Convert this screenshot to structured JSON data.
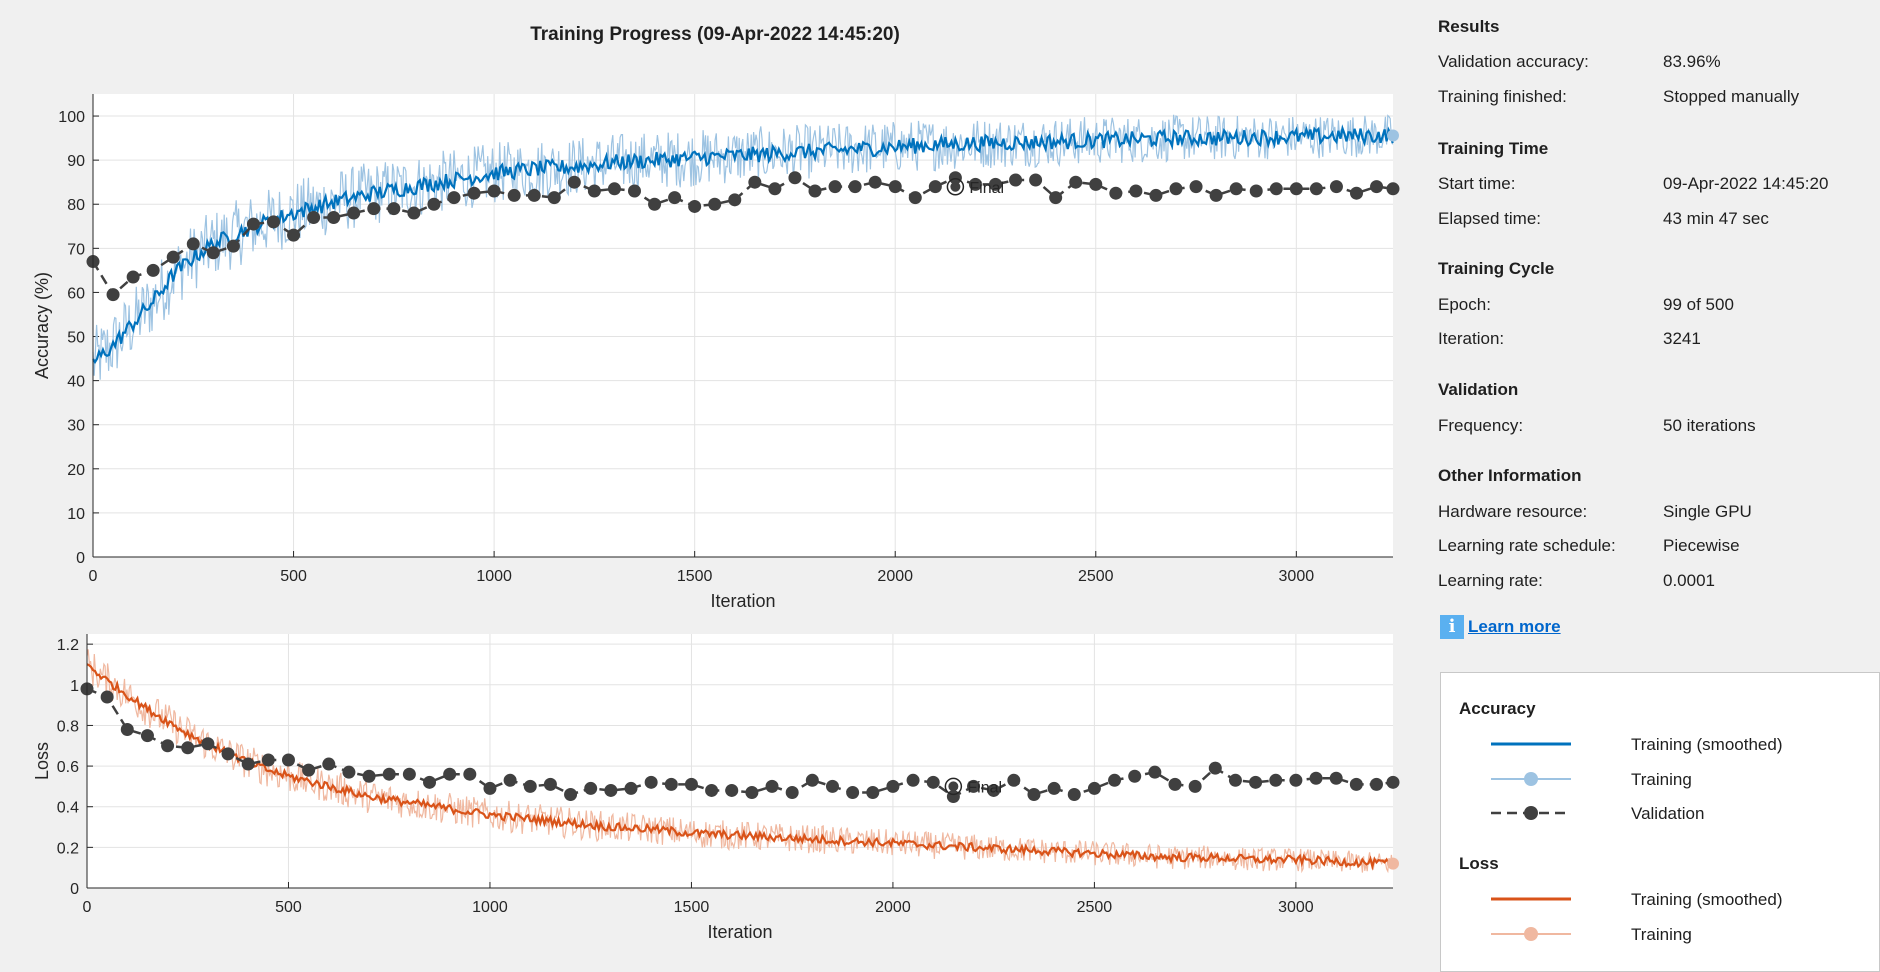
{
  "title": "Training Progress (09-Apr-2022 14:45:20)",
  "chart_data": [
    {
      "type": "line",
      "ylabel": "Accuracy (%)",
      "xlabel": "Iteration",
      "xlim": [
        0,
        3241
      ],
      "ylim": [
        0,
        105
      ],
      "xticks": [
        "0",
        "500",
        "1000",
        "1500",
        "2000",
        "2500",
        "3000"
      ],
      "yticks": [
        "0",
        "10",
        "20",
        "30",
        "40",
        "50",
        "60",
        "70",
        "80",
        "90",
        "100"
      ],
      "grid": true,
      "final_label": "Final",
      "final_point": {
        "x": 2150,
        "y": 83.96
      },
      "series": [
        {
          "name": "Training (smoothed)",
          "color": "#0072bd",
          "x": [
            0,
            50,
            100,
            150,
            200,
            250,
            300,
            350,
            400,
            450,
            500,
            600,
            700,
            800,
            900,
            1000,
            1100,
            1200,
            1300,
            1400,
            1500,
            1600,
            1700,
            1800,
            1900,
            2000,
            2100,
            2200,
            2300,
            2400,
            2500,
            2600,
            2700,
            2800,
            2900,
            3000,
            3100,
            3241
          ],
          "y": [
            44,
            48,
            53,
            58,
            64,
            68,
            71,
            73,
            75,
            76.5,
            78,
            80.5,
            82.5,
            84,
            85.5,
            87,
            88,
            88.5,
            89.5,
            90,
            90.5,
            91,
            91.5,
            92,
            92.5,
            93,
            93.5,
            93.8,
            94,
            94.2,
            94.5,
            94.7,
            95,
            95,
            95.2,
            95.3,
            95.5,
            95.6
          ]
        },
        {
          "name": "Training",
          "color": "#9dc3e2",
          "x": [
            0,
            50,
            100,
            150,
            200,
            250,
            300,
            350,
            400,
            450,
            500,
            600,
            700,
            800,
            900,
            1000,
            1100,
            1200,
            1300,
            1400,
            1500,
            1600,
            1700,
            1800,
            1900,
            2000,
            2100,
            2200,
            2300,
            2400,
            2500,
            2600,
            2700,
            2800,
            2900,
            3000,
            3100,
            3241
          ],
          "y": [
            44,
            48,
            53,
            58,
            64,
            68,
            71,
            73,
            75,
            76.5,
            78,
            80.5,
            82.5,
            84,
            85.5,
            87,
            88,
            88.5,
            89.5,
            90,
            90.5,
            91,
            91.5,
            92,
            92.5,
            93,
            93.5,
            93.8,
            94,
            94.2,
            94.5,
            94.7,
            95,
            95,
            95.2,
            95.3,
            95.5,
            95.6
          ]
        },
        {
          "name": "Validation",
          "color": "#404040",
          "x": [
            0,
            50,
            100,
            150,
            200,
            250,
            300,
            350,
            400,
            450,
            500,
            550,
            600,
            650,
            700,
            750,
            800,
            850,
            900,
            950,
            1000,
            1050,
            1100,
            1150,
            1200,
            1250,
            1300,
            1350,
            1400,
            1450,
            1500,
            1550,
            1600,
            1650,
            1700,
            1750,
            1800,
            1850,
            1900,
            1950,
            2000,
            2050,
            2100,
            2150,
            2200,
            2250,
            2300,
            2350,
            2400,
            2450,
            2500,
            2550,
            2600,
            2650,
            2700,
            2750,
            2800,
            2850,
            2900,
            2950,
            3000,
            3050,
            3100,
            3150,
            3200,
            3241
          ],
          "y": [
            67,
            59.5,
            63.5,
            65,
            68,
            71,
            69,
            70.5,
            75.5,
            76,
            73,
            77,
            77,
            78,
            79,
            79,
            78,
            80,
            81.5,
            82.5,
            83,
            82,
            82,
            81.5,
            85,
            83,
            83.5,
            83,
            80,
            81.5,
            79.5,
            80,
            81,
            85,
            83.5,
            86,
            83,
            84,
            84,
            85,
            84,
            81.5,
            84,
            86,
            84.5,
            84.5,
            85.5,
            85.5,
            81.5,
            85,
            84.5,
            82.5,
            83,
            82,
            83.5,
            84,
            82,
            83.5,
            83,
            83.5,
            83.5,
            83.5,
            84,
            82.5,
            84,
            83.5
          ]
        }
      ]
    },
    {
      "type": "line",
      "ylabel": "Loss",
      "xlabel": "Iteration",
      "xlim": [
        0,
        3241
      ],
      "ylim": [
        0,
        1.25
      ],
      "xticks": [
        "0",
        "500",
        "1000",
        "1500",
        "2000",
        "2500",
        "3000"
      ],
      "yticks": [
        "0",
        "0.2",
        "0.4",
        "0.6",
        "0.8",
        "1",
        "1.2"
      ],
      "grid": true,
      "final_label": "Final",
      "final_point": {
        "x": 2150,
        "y": 0.5
      },
      "series": [
        {
          "name": "Training (smoothed)",
          "color": "#d95319",
          "x": [
            0,
            50,
            100,
            150,
            200,
            250,
            300,
            350,
            400,
            450,
            500,
            600,
            700,
            800,
            900,
            1000,
            1100,
            1200,
            1300,
            1400,
            1500,
            1600,
            1700,
            1800,
            1900,
            2000,
            2100,
            2200,
            2300,
            2400,
            2500,
            2600,
            2700,
            2800,
            2900,
            3000,
            3100,
            3241
          ],
          "y": [
            1.1,
            1.02,
            0.95,
            0.88,
            0.82,
            0.76,
            0.71,
            0.66,
            0.62,
            0.58,
            0.55,
            0.5,
            0.45,
            0.42,
            0.39,
            0.36,
            0.34,
            0.32,
            0.3,
            0.29,
            0.27,
            0.26,
            0.25,
            0.24,
            0.23,
            0.22,
            0.21,
            0.2,
            0.19,
            0.18,
            0.17,
            0.16,
            0.15,
            0.15,
            0.14,
            0.14,
            0.13,
            0.12
          ]
        },
        {
          "name": "Training",
          "color": "#f0b8a0",
          "x": [
            0,
            50,
            100,
            150,
            200,
            250,
            300,
            350,
            400,
            450,
            500,
            600,
            700,
            800,
            900,
            1000,
            1100,
            1200,
            1300,
            1400,
            1500,
            1600,
            1700,
            1800,
            1900,
            2000,
            2100,
            2200,
            2300,
            2400,
            2500,
            2600,
            2700,
            2800,
            2900,
            3000,
            3100,
            3241
          ],
          "y": [
            1.1,
            1.02,
            0.95,
            0.88,
            0.82,
            0.76,
            0.71,
            0.66,
            0.62,
            0.58,
            0.55,
            0.5,
            0.45,
            0.42,
            0.39,
            0.36,
            0.34,
            0.32,
            0.3,
            0.29,
            0.27,
            0.26,
            0.25,
            0.24,
            0.23,
            0.22,
            0.21,
            0.2,
            0.19,
            0.18,
            0.17,
            0.16,
            0.15,
            0.15,
            0.14,
            0.14,
            0.13,
            0.12
          ]
        },
        {
          "name": "Validation",
          "color": "#404040",
          "x": [
            0,
            50,
            100,
            150,
            200,
            250,
            300,
            350,
            400,
            450,
            500,
            550,
            600,
            650,
            700,
            750,
            800,
            850,
            900,
            950,
            1000,
            1050,
            1100,
            1150,
            1200,
            1250,
            1300,
            1350,
            1400,
            1450,
            1500,
            1550,
            1600,
            1650,
            1700,
            1750,
            1800,
            1850,
            1900,
            1950,
            2000,
            2050,
            2100,
            2150,
            2200,
            2250,
            2300,
            2350,
            2400,
            2450,
            2500,
            2550,
            2600,
            2650,
            2700,
            2750,
            2800,
            2850,
            2900,
            2950,
            3000,
            3050,
            3100,
            3150,
            3200,
            3241
          ],
          "y": [
            0.98,
            0.94,
            0.78,
            0.75,
            0.7,
            0.69,
            0.71,
            0.66,
            0.61,
            0.63,
            0.63,
            0.58,
            0.61,
            0.57,
            0.55,
            0.56,
            0.56,
            0.52,
            0.56,
            0.56,
            0.49,
            0.53,
            0.5,
            0.51,
            0.46,
            0.49,
            0.48,
            0.49,
            0.52,
            0.51,
            0.51,
            0.48,
            0.48,
            0.47,
            0.5,
            0.47,
            0.53,
            0.5,
            0.47,
            0.47,
            0.5,
            0.53,
            0.52,
            0.45,
            0.5,
            0.48,
            0.53,
            0.46,
            0.49,
            0.46,
            0.49,
            0.53,
            0.55,
            0.57,
            0.51,
            0.5,
            0.59,
            0.53,
            0.52,
            0.53,
            0.53,
            0.54,
            0.54,
            0.51,
            0.51,
            0.52
          ]
        }
      ]
    }
  ],
  "panel": {
    "results": {
      "title": "Results",
      "val_acc_label": "Validation accuracy:",
      "val_acc_value": "83.96%",
      "finished_label": "Training finished:",
      "finished_value": "Stopped manually"
    },
    "time": {
      "title": "Training Time",
      "start_label": "Start time:",
      "start_value": "09-Apr-2022 14:45:20",
      "elapsed_label": "Elapsed time:",
      "elapsed_value": "43 min 47 sec"
    },
    "cycle": {
      "title": "Training Cycle",
      "epoch_label": "Epoch:",
      "epoch_value": "99 of 500",
      "iter_label": "Iteration:",
      "iter_value": "3241"
    },
    "validation": {
      "title": "Validation",
      "freq_label": "Frequency:",
      "freq_value": "50 iterations"
    },
    "other": {
      "title": "Other Information",
      "hw_label": "Hardware resource:",
      "hw_value": "Single GPU",
      "sched_label": "Learning rate schedule:",
      "sched_value": "Piecewise",
      "lr_label": "Learning rate:",
      "lr_value": "0.0001"
    },
    "learn_more": "Learn more",
    "info_icon": "info-icon"
  },
  "legend": {
    "accuracy_title": "Accuracy",
    "loss_title": "Loss",
    "entries": {
      "acc_smoothed": "Training (smoothed)",
      "acc_training": "Training",
      "acc_validation": "Validation",
      "loss_smoothed": "Training (smoothed)",
      "loss_training": "Training"
    }
  }
}
